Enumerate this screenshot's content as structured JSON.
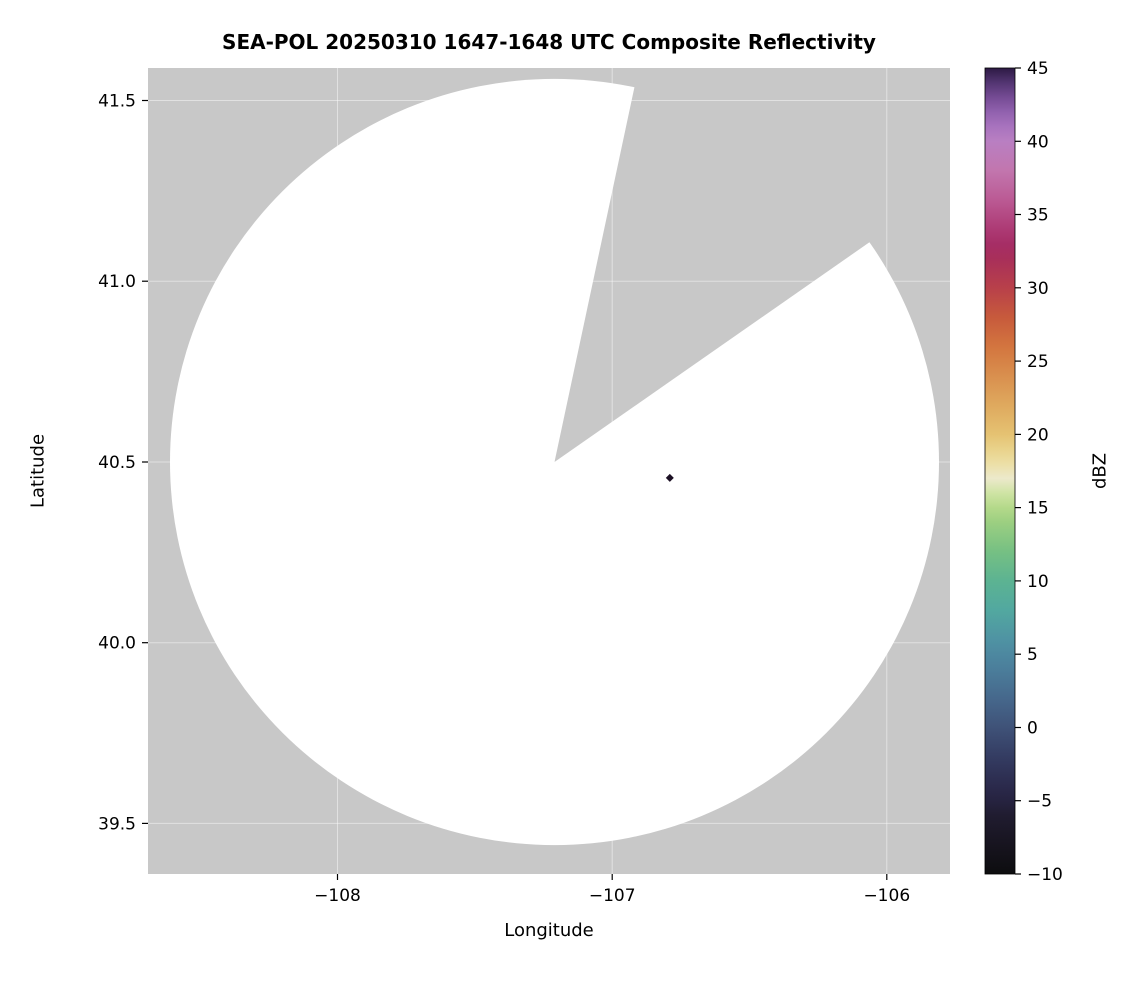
{
  "chart_data": {
    "type": "heatmap",
    "subtype": "radar-composite-reflectivity-map",
    "title": "SEA-POL 20250310 1647-1648 UTC Composite Reflectivity",
    "xlabel": "Longitude",
    "ylabel": "Latitude",
    "xlim": [
      -108.69,
      -105.77
    ],
    "ylim": [
      39.36,
      41.59
    ],
    "grid": true,
    "xticks": [
      {
        "v": -108,
        "label": "−108"
      },
      {
        "v": -107,
        "label": "−107"
      },
      {
        "v": -106,
        "label": "−106"
      }
    ],
    "yticks": [
      {
        "v": 41.5,
        "label": "41.5"
      },
      {
        "v": 41.0,
        "label": "41.0"
      },
      {
        "v": 40.5,
        "label": "40.5"
      },
      {
        "v": 40.0,
        "label": "40.0"
      },
      {
        "v": 39.5,
        "label": "39.5"
      }
    ],
    "colors": {
      "no_data_gray": "#c8c8c8",
      "scanned_clear_white": "#ffffff",
      "gridline": "#ffffff"
    },
    "radar": {
      "center_lon": -107.21,
      "center_lat": 40.5,
      "radius_lon_deg": 1.4,
      "radius_lat_deg": 1.06,
      "blocked_sector_azimuth_deg": [
        12,
        55
      ]
    },
    "echoes": [
      {
        "lon": -106.79,
        "lat": 40.456,
        "dbz": 45,
        "color": "#1c1024",
        "marker": "diamond"
      }
    ],
    "colorbar": {
      "label": "dBZ",
      "min": -10,
      "max": 45,
      "ticks": [
        {
          "v": 45,
          "label": "45"
        },
        {
          "v": 40,
          "label": "40"
        },
        {
          "v": 35,
          "label": "35"
        },
        {
          "v": 30,
          "label": "30"
        },
        {
          "v": 25,
          "label": "25"
        },
        {
          "v": 20,
          "label": "20"
        },
        {
          "v": 15,
          "label": "15"
        },
        {
          "v": 10,
          "label": "10"
        },
        {
          "v": 5,
          "label": "5"
        },
        {
          "v": 0,
          "label": "0"
        },
        {
          "v": -5,
          "label": "−5"
        },
        {
          "v": -10,
          "label": "−10"
        }
      ],
      "stops": [
        {
          "v": -10,
          "c": "#0d0d0f"
        },
        {
          "v": -8,
          "c": "#17141f"
        },
        {
          "v": -6,
          "c": "#201c30"
        },
        {
          "v": -5,
          "c": "#262340"
        },
        {
          "v": -4,
          "c": "#2b2a4c"
        },
        {
          "v": -2,
          "c": "#343c62"
        },
        {
          "v": 0,
          "c": "#3f5278"
        },
        {
          "v": 2,
          "c": "#46688c"
        },
        {
          "v": 4,
          "c": "#4b7e9b"
        },
        {
          "v": 5,
          "c": "#4d88a0"
        },
        {
          "v": 6,
          "c": "#4f93a3"
        },
        {
          "v": 8,
          "c": "#52a8a0"
        },
        {
          "v": 10,
          "c": "#5cb392"
        },
        {
          "v": 12,
          "c": "#76c083"
        },
        {
          "v": 14,
          "c": "#9ccf81"
        },
        {
          "v": 15,
          "c": "#b4d98a"
        },
        {
          "v": 16,
          "c": "#cfe4a4"
        },
        {
          "v": 17,
          "c": "#ece9cb"
        },
        {
          "v": 18,
          "c": "#ecdfa6"
        },
        {
          "v": 19,
          "c": "#e9d28a"
        },
        {
          "v": 20,
          "c": "#e5c272"
        },
        {
          "v": 22,
          "c": "#dfa95e"
        },
        {
          "v": 24,
          "c": "#d98f4e"
        },
        {
          "v": 25,
          "c": "#d68246"
        },
        {
          "v": 26,
          "c": "#d3753f"
        },
        {
          "v": 28,
          "c": "#c75a3c"
        },
        {
          "v": 30,
          "c": "#b8404a"
        },
        {
          "v": 32,
          "c": "#a82f5a"
        },
        {
          "v": 33,
          "c": "#a62e66"
        },
        {
          "v": 34,
          "c": "#ad3a74"
        },
        {
          "v": 35,
          "c": "#b44a84"
        },
        {
          "v": 36,
          "c": "#bb5a94"
        },
        {
          "v": 38,
          "c": "#c276ae"
        },
        {
          "v": 40,
          "c": "#b97fc2"
        },
        {
          "v": 41,
          "c": "#a873be"
        },
        {
          "v": 42,
          "c": "#9161ae"
        },
        {
          "v": 43,
          "c": "#754b94"
        },
        {
          "v": 44,
          "c": "#533572"
        },
        {
          "v": 45,
          "c": "#2d1a44"
        }
      ]
    }
  }
}
